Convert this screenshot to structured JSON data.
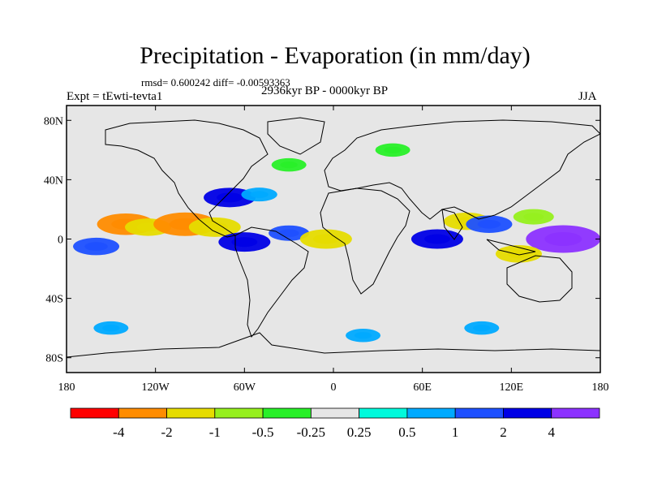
{
  "title": "Precipitation - Evaporation (in mm/day)",
  "stats": "rmsd= 0.600242 diff= -0.00593363",
  "experiment": "Expt = tEwti-tevta1",
  "period": "2936kyr BP - 0000kyr BP",
  "season": "JJA",
  "chart_data": {
    "type": "heatmap",
    "title": "Precipitation - Evaporation (in mm/day)",
    "lat_ticks": [
      {
        "value": 80,
        "label": "80N"
      },
      {
        "value": 40,
        "label": "40N"
      },
      {
        "value": 0,
        "label": "0"
      },
      {
        "value": -40,
        "label": "40S"
      },
      {
        "value": -80,
        "label": "80S"
      }
    ],
    "lon_ticks": [
      {
        "value": -180,
        "label": "180"
      },
      {
        "value": -120,
        "label": "120W"
      },
      {
        "value": -60,
        "label": "60W"
      },
      {
        "value": 0,
        "label": "0"
      },
      {
        "value": 60,
        "label": "60E"
      },
      {
        "value": 120,
        "label": "120E"
      },
      {
        "value": 180,
        "label": "180"
      }
    ],
    "xlim": [
      -180,
      180
    ],
    "ylim": [
      -90,
      90
    ],
    "colorbar": {
      "levels": [
        -4,
        -2,
        -1,
        -0.5,
        -0.25,
        0.25,
        0.5,
        1,
        2,
        4
      ],
      "labels": [
        "-4",
        "-2",
        "-1",
        "-0.5",
        "-0.25",
        "0.25",
        "0.5",
        "1",
        "2",
        "4"
      ],
      "colors": [
        "#ff0000",
        "#ff8c00",
        "#e6dc00",
        "#96f01e",
        "#28f028",
        "#e6e6e6",
        "#00fadc",
        "#00aaff",
        "#1e50ff",
        "#0000e6",
        "#8c32ff"
      ]
    },
    "anomalies": [
      {
        "lon": -140,
        "lat": 10,
        "value": -2.5
      },
      {
        "lon": -125,
        "lat": 8,
        "value": -1.5
      },
      {
        "lon": -100,
        "lat": 10,
        "value": -3
      },
      {
        "lon": -80,
        "lat": 8,
        "value": -2
      },
      {
        "lon": -70,
        "lat": 28,
        "value": 2
      },
      {
        "lon": -50,
        "lat": 30,
        "value": 0.6
      },
      {
        "lon": -60,
        "lat": -2,
        "value": 2
      },
      {
        "lon": -30,
        "lat": 4,
        "value": 1
      },
      {
        "lon": -5,
        "lat": 0,
        "value": -2
      },
      {
        "lon": 70,
        "lat": 0,
        "value": 2
      },
      {
        "lon": 90,
        "lat": 12,
        "value": -1.5
      },
      {
        "lon": 105,
        "lat": 10,
        "value": 1.5
      },
      {
        "lon": 135,
        "lat": 15,
        "value": -1
      },
      {
        "lon": 155,
        "lat": 0,
        "value": 4
      },
      {
        "lon": 125,
        "lat": -10,
        "value": -1.5
      },
      {
        "lon": -160,
        "lat": -5,
        "value": 1.5
      },
      {
        "lon": -150,
        "lat": -60,
        "value": 0.5
      },
      {
        "lon": 20,
        "lat": -65,
        "value": 0.5
      },
      {
        "lon": 100,
        "lat": -60,
        "value": 0.5
      },
      {
        "lon": -30,
        "lat": 50,
        "value": -0.5
      },
      {
        "lon": 40,
        "lat": 60,
        "value": -0.5
      }
    ]
  }
}
